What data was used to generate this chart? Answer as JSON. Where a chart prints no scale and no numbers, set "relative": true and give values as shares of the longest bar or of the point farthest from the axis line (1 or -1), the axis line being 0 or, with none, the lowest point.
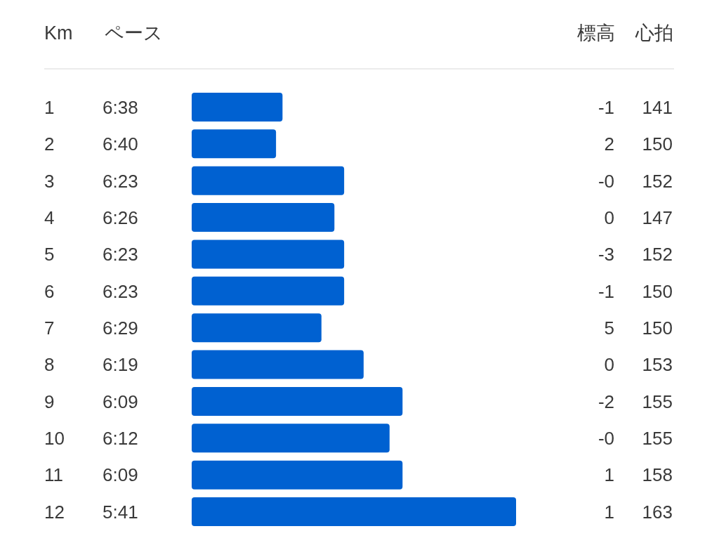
{
  "chart_data": [
    {
      "type": "heatmap",
      "ylabel": "Km",
      "categories": [
        "ペース",
        "標高",
        "心拍"
      ],
      "y_categories": [
        "1",
        "2",
        "3",
        "4",
        "5",
        "6",
        "7",
        "8",
        "9",
        "10",
        "11",
        "12"
      ],
      "cells": [
        [
          6.6333,
          -1,
          141
        ],
        [
          6.6667,
          2,
          150
        ],
        [
          6.3833,
          0,
          152
        ],
        [
          6.4333,
          0,
          147
        ],
        [
          6.3833,
          -3,
          152
        ],
        [
          6.3833,
          -1,
          150
        ],
        [
          6.4833,
          5,
          150
        ],
        [
          6.3167,
          0,
          153
        ],
        [
          6.15,
          -2,
          155
        ],
        [
          6.2,
          0,
          155
        ],
        [
          6.15,
          1,
          158
        ],
        [
          5.6833,
          1,
          163
        ]
      ],
      "cell_labels": [
        [
          "6:38",
          "-1",
          "141"
        ],
        [
          "6:40",
          "2",
          "150"
        ],
        [
          "6:23",
          "-0",
          "152"
        ],
        [
          "6:26",
          "0",
          "147"
        ],
        [
          "6:23",
          "-3",
          "152"
        ],
        [
          "6:23",
          "-1",
          "150"
        ],
        [
          "6:29",
          "5",
          "150"
        ],
        [
          "6:19",
          "0",
          "153"
        ],
        [
          "6:09",
          "-2",
          "155"
        ],
        [
          "6:12",
          "-0",
          "155"
        ],
        [
          "6:09",
          "1",
          "158"
        ],
        [
          "5:41",
          "1",
          "163"
        ]
      ]
    },
    {
      "type": "bar",
      "orientation": "horizontal",
      "relative": true,
      "categories": [
        null,
        null,
        null,
        null,
        null,
        null,
        null,
        null,
        null,
        null,
        null,
        null
      ],
      "values": [
        0.28,
        0.26,
        0.47,
        0.44,
        0.47,
        0.47,
        0.4,
        0.53,
        0.65,
        0.61,
        0.65,
        1
      ],
      "color": "#0061d1"
    }
  ]
}
